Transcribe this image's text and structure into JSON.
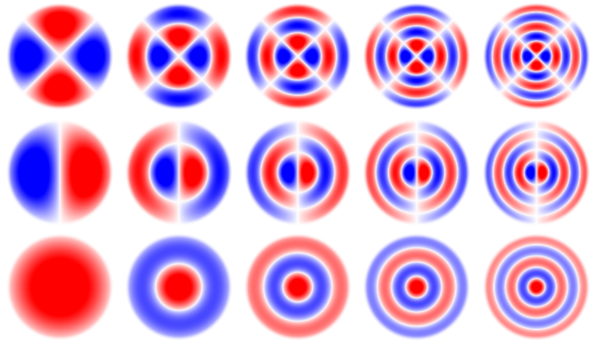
{
  "figure": {
    "description_free": true,
    "colors": {
      "positive": "#ff0000",
      "negative": "#0000ff",
      "zero": "#ffffff"
    },
    "rows": [
      {
        "angular_order": 2,
        "radial_modes": [
          1,
          2,
          3,
          4,
          5
        ]
      },
      {
        "angular_order": 1,
        "radial_modes": [
          1,
          2,
          3,
          4,
          5
        ]
      },
      {
        "angular_order": 0,
        "radial_modes": [
          1,
          2,
          3,
          4,
          5
        ]
      }
    ]
  }
}
